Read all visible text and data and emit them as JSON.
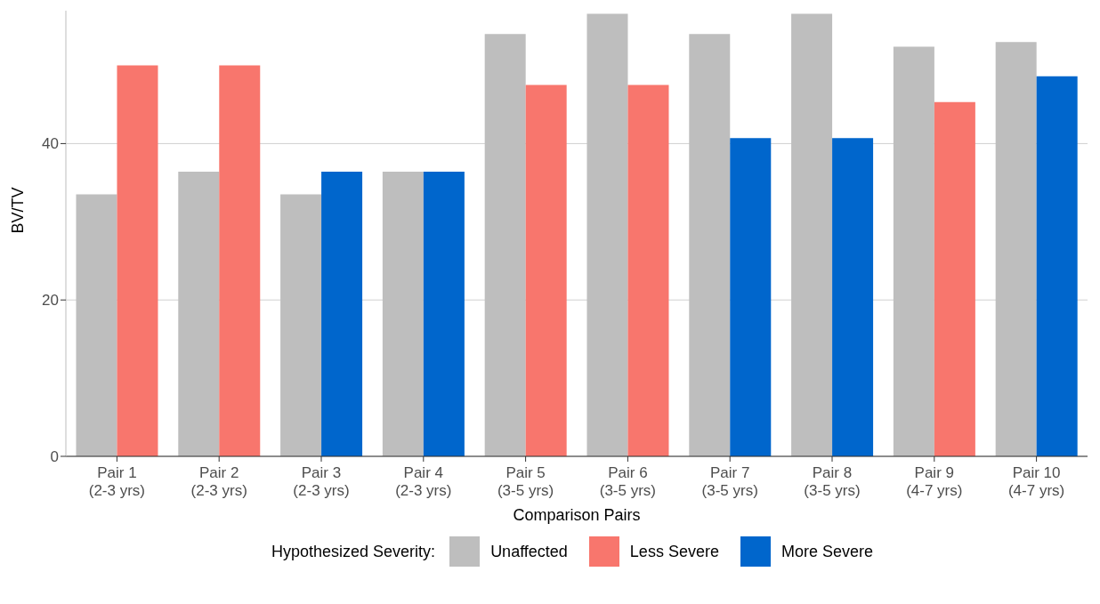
{
  "chart_data": {
    "type": "bar",
    "xlabel": "Comparison Pairs",
    "ylabel": "BV/TV",
    "legend_title": "Hypothesized Severity:",
    "categories": [
      "Pair 1 (2-3 yrs)",
      "Pair 2 (2-3 yrs)",
      "Pair 3 (2-3 yrs)",
      "Pair 4 (2-3 yrs)",
      "Pair 5 (3-5 yrs)",
      "Pair 6 (3-5 yrs)",
      "Pair 7 (3-5 yrs)",
      "Pair 8 (3-5 yrs)",
      "Pair 9 (4-7 yrs)",
      "Pair 10 (4-7 yrs)"
    ],
    "series": [
      {
        "name": "Unaffected",
        "color": "#bebebe",
        "values": [
          33.5,
          36.4,
          33.5,
          36.4,
          54,
          56.6,
          54,
          56.6,
          52.4,
          53
        ]
      },
      {
        "name": "Less Severe",
        "color": "#f8766d",
        "values": [
          50,
          50,
          null,
          null,
          47.5,
          47.5,
          null,
          null,
          45.3,
          null
        ]
      },
      {
        "name": "More Severe",
        "color": "#0066cc",
        "values": [
          null,
          null,
          36.4,
          36.4,
          null,
          null,
          40.7,
          40.7,
          null,
          48.6
        ]
      }
    ],
    "ylim": [
      0,
      57
    ],
    "yticks": [
      0,
      20,
      40
    ],
    "grid": "y",
    "legend": "bottom"
  }
}
